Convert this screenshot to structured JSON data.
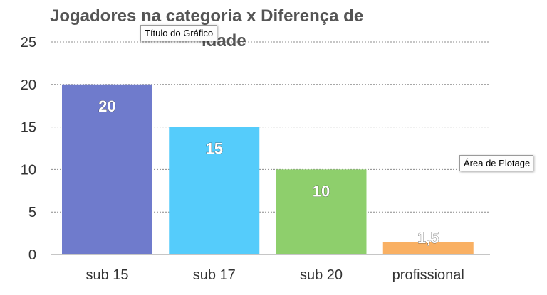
{
  "chart_data": {
    "type": "bar",
    "title_line1": "Jogadores na categoria x Diferença de",
    "title_line2": "idade",
    "categories": [
      "sub 15",
      "sub 17",
      "sub 20",
      "profissional"
    ],
    "values": [
      20,
      15,
      10,
      1.5
    ],
    "data_labels": [
      "20",
      "15",
      "10",
      "1,5"
    ],
    "bar_colors": [
      "#6f7bcc",
      "#55ccfb",
      "#8ecf6c",
      "#f9b063"
    ],
    "ylim": [
      0,
      25
    ],
    "yticks": [
      0,
      5,
      10,
      15,
      20,
      25
    ],
    "grid": true,
    "xlabel": "",
    "ylabel": ""
  },
  "tooltips": {
    "chart_title": "Título do Gráfico",
    "plot_area": "Área de Plotage"
  }
}
